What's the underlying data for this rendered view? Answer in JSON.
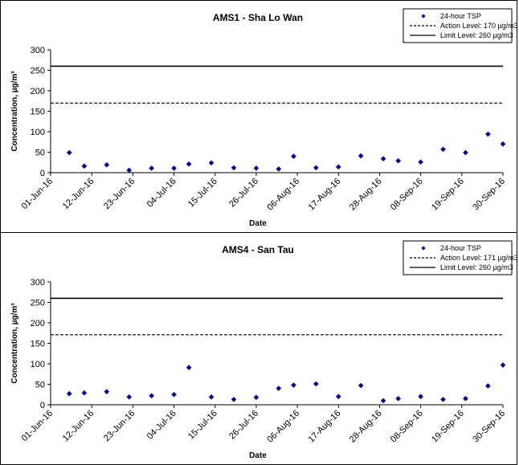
{
  "x_ticks": [
    "01-Jun-16",
    "12-Jun-16",
    "23-Jun-16",
    "04-Jul-16",
    "15-Jul-16",
    "26-Jul-16",
    "06-Aug-16",
    "17-Aug-16",
    "28-Aug-16",
    "08-Sep-16",
    "19-Sep-16",
    "30-Sep-16"
  ],
  "chart_data": [
    {
      "type": "scatter",
      "title": "AMS1 - Sha Lo Wan",
      "xlabel": "Date",
      "ylabel": "Concentration, µg/m³",
      "xlim": [
        "2016-06-01",
        "2016-09-30"
      ],
      "ylim": [
        0,
        300
      ],
      "y_ticks": [
        0,
        50,
        100,
        150,
        200,
        250,
        300
      ],
      "legend_position": "top-right",
      "colors": {
        "marker": "#000080",
        "line": "#000000"
      },
      "series": [
        {
          "name": "24-hour TSP",
          "style": "diamond",
          "points": [
            {
              "x": "2016-06-06",
              "y": 49
            },
            {
              "x": "2016-06-10",
              "y": 16
            },
            {
              "x": "2016-06-16",
              "y": 19
            },
            {
              "x": "2016-06-22",
              "y": 6
            },
            {
              "x": "2016-06-28",
              "y": 11
            },
            {
              "x": "2016-07-04",
              "y": 11
            },
            {
              "x": "2016-07-08",
              "y": 21
            },
            {
              "x": "2016-07-14",
              "y": 24
            },
            {
              "x": "2016-07-20",
              "y": 12
            },
            {
              "x": "2016-07-26",
              "y": 11
            },
            {
              "x": "2016-08-01",
              "y": 9
            },
            {
              "x": "2016-08-05",
              "y": 40
            },
            {
              "x": "2016-08-11",
              "y": 12
            },
            {
              "x": "2016-08-17",
              "y": 14
            },
            {
              "x": "2016-08-23",
              "y": 41
            },
            {
              "x": "2016-08-29",
              "y": 34
            },
            {
              "x": "2016-09-02",
              "y": 29
            },
            {
              "x": "2016-09-08",
              "y": 26
            },
            {
              "x": "2016-09-14",
              "y": 57
            },
            {
              "x": "2016-09-20",
              "y": 49
            },
            {
              "x": "2016-09-26",
              "y": 94
            },
            {
              "x": "2016-09-30",
              "y": 70
            }
          ]
        },
        {
          "name": "Action Level: 170 µg/m3",
          "style": "dashed",
          "value": 170
        },
        {
          "name": "Limit Level: 260 µg/m3",
          "style": "solid",
          "value": 260
        }
      ]
    },
    {
      "type": "scatter",
      "title": "AMS4 - San Tau",
      "xlabel": "Date",
      "ylabel": "Concentration, µg/m³",
      "xlim": [
        "2016-06-01",
        "2016-09-30"
      ],
      "ylim": [
        0,
        300
      ],
      "y_ticks": [
        0,
        50,
        100,
        150,
        200,
        250,
        300
      ],
      "legend_position": "top-right",
      "colors": {
        "marker": "#000080",
        "line": "#000000"
      },
      "series": [
        {
          "name": "24-hour TSP",
          "style": "diamond",
          "points": [
            {
              "x": "2016-06-06",
              "y": 27
            },
            {
              "x": "2016-06-10",
              "y": 29
            },
            {
              "x": "2016-06-16",
              "y": 32
            },
            {
              "x": "2016-06-22",
              "y": 19
            },
            {
              "x": "2016-06-28",
              "y": 22
            },
            {
              "x": "2016-07-04",
              "y": 25
            },
            {
              "x": "2016-07-08",
              "y": 91
            },
            {
              "x": "2016-07-14",
              "y": 19
            },
            {
              "x": "2016-07-20",
              "y": 13
            },
            {
              "x": "2016-07-26",
              "y": 18
            },
            {
              "x": "2016-08-01",
              "y": 40
            },
            {
              "x": "2016-08-05",
              "y": 48
            },
            {
              "x": "2016-08-11",
              "y": 51
            },
            {
              "x": "2016-08-17",
              "y": 20
            },
            {
              "x": "2016-08-23",
              "y": 47
            },
            {
              "x": "2016-08-29",
              "y": 10
            },
            {
              "x": "2016-09-02",
              "y": 15
            },
            {
              "x": "2016-09-08",
              "y": 20
            },
            {
              "x": "2016-09-14",
              "y": 13
            },
            {
              "x": "2016-09-20",
              "y": 15
            },
            {
              "x": "2016-09-26",
              "y": 46
            },
            {
              "x": "2016-09-30",
              "y": 97
            }
          ]
        },
        {
          "name": "Action Level: 171 µg/m3",
          "style": "dashed",
          "value": 171
        },
        {
          "name": "Limit Level: 260 µg/m3",
          "style": "solid",
          "value": 260
        }
      ]
    }
  ]
}
